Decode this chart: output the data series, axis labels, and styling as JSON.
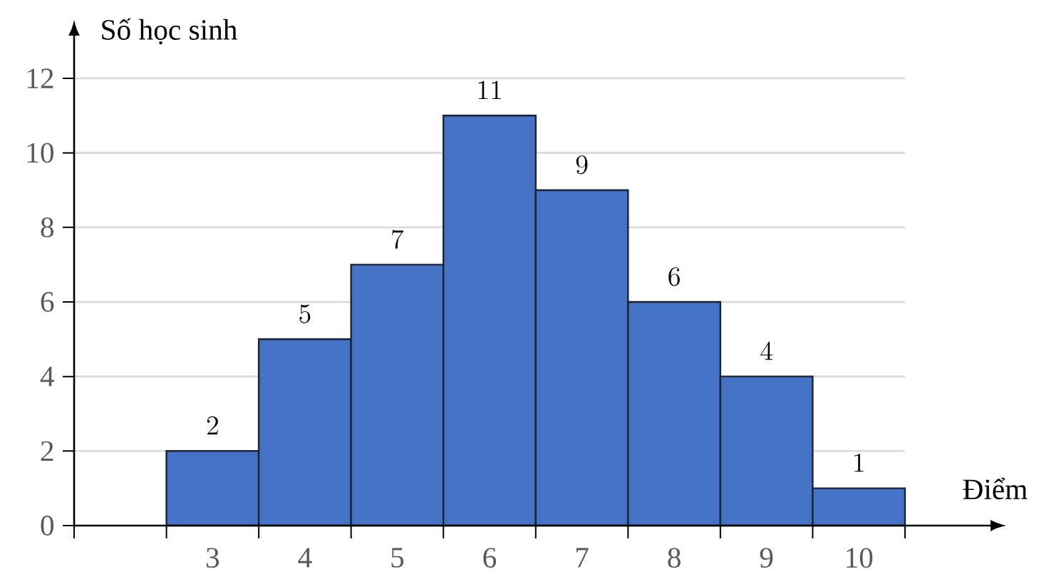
{
  "chart_data": {
    "type": "bar",
    "xlabel": "Điểm",
    "ylabel": "Số học sinh",
    "categories": [
      null,
      "3",
      "4",
      "5",
      "6",
      "7",
      "8",
      "9",
      "10"
    ],
    "values": [
      null,
      2,
      5,
      7,
      11,
      9,
      6,
      4,
      1
    ],
    "color": "#4472c4",
    "ylim": [
      0,
      12
    ],
    "yticks": [
      0,
      2,
      4,
      6,
      8,
      10,
      12
    ],
    "grid": "y",
    "data_labels": true
  }
}
